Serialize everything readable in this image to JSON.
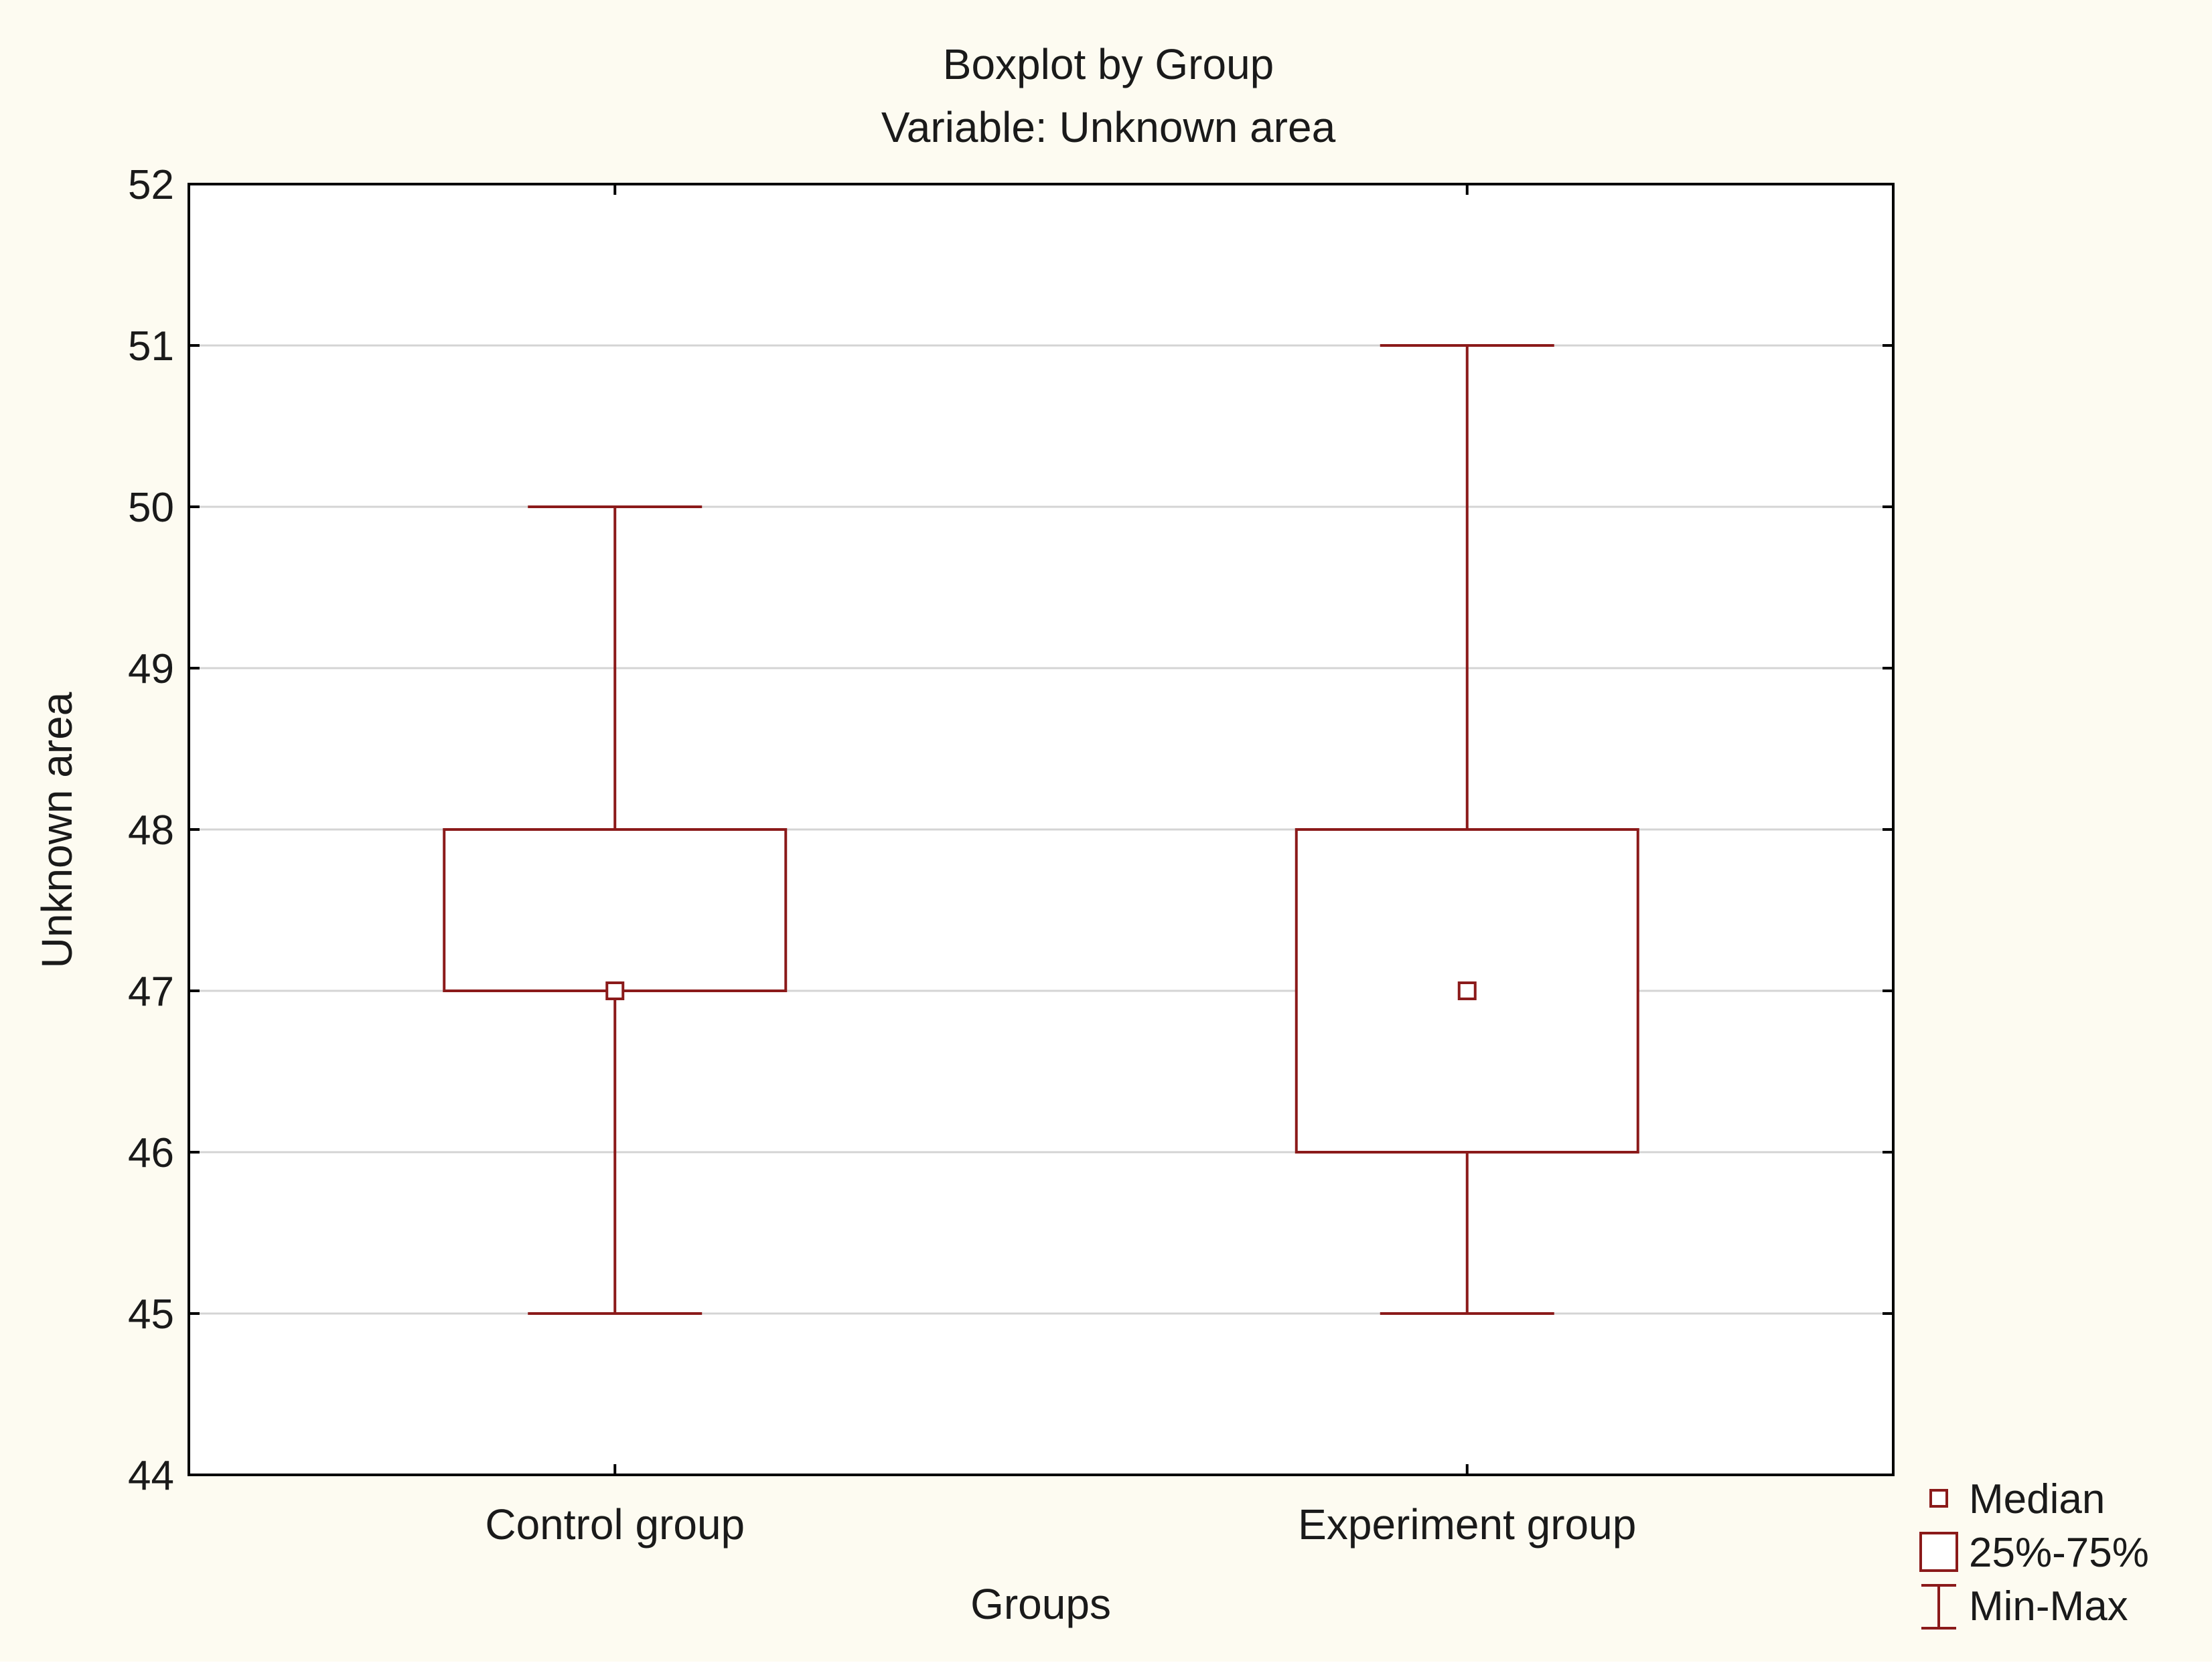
{
  "chart_data": {
    "type": "boxplot",
    "title": "Boxplot by Group",
    "subtitle": "Variable: Unknown area",
    "xlabel": "Groups",
    "ylabel": "Unknown area",
    "ylim": [
      44,
      52
    ],
    "yticks": [
      44,
      45,
      46,
      47,
      48,
      49,
      50,
      51,
      52
    ],
    "grid": true,
    "legend_position": "bottom-right",
    "categories": [
      "Control group",
      "Experiment group"
    ],
    "series": [
      {
        "name": "Control group",
        "min": 45,
        "q1": 47,
        "median": 47,
        "q3": 48,
        "max": 50
      },
      {
        "name": "Experiment group",
        "min": 45,
        "q1": 46,
        "median": 47,
        "q3": 48,
        "max": 51
      }
    ],
    "legend": [
      {
        "symbol": "median",
        "label": "Median"
      },
      {
        "symbol": "box",
        "label": "25%-75%"
      },
      {
        "symbol": "whisker",
        "label": "Min-Max"
      }
    ]
  },
  "colors": {
    "background": "#fdfbf1",
    "plot_background": "#ffffff",
    "series": "#8b1a1a",
    "grid": "#d4d4d4",
    "axis": "#000000"
  }
}
